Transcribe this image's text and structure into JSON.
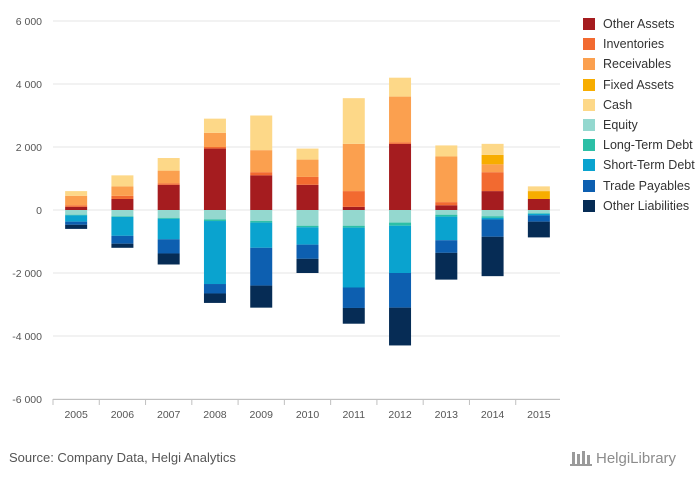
{
  "chart_data": {
    "type": "bar",
    "stacked": true,
    "categories": [
      "2005",
      "2006",
      "2007",
      "2008",
      "2009",
      "2010",
      "2011",
      "2012",
      "2013",
      "2014",
      "2015"
    ],
    "ylim": [
      -6000,
      6000
    ],
    "yticks": [
      6000,
      4000,
      2000,
      0,
      -2000,
      -4000,
      -6000
    ],
    "ytick_labels": [
      "6 000",
      "4 000",
      "2 000",
      "0",
      "-2 000",
      "-4 000",
      "-6 000"
    ],
    "grid": true,
    "legend_position": "right",
    "series": [
      {
        "name": "Other Assets",
        "color": "#a51c1f",
        "values": [
          100,
          350,
          800,
          1950,
          1100,
          800,
          100,
          2100,
          150,
          600,
          350
        ]
      },
      {
        "name": "Inventories",
        "color": "#f26a30",
        "values": [
          50,
          100,
          50,
          50,
          100,
          250,
          500,
          50,
          100,
          600,
          0
        ]
      },
      {
        "name": "Receivables",
        "color": "#fba04f",
        "values": [
          300,
          300,
          400,
          450,
          700,
          550,
          1500,
          1450,
          1450,
          250,
          0
        ]
      },
      {
        "name": "Fixed Assets",
        "color": "#f7ad00",
        "values": [
          0,
          0,
          0,
          0,
          0,
          0,
          0,
          0,
          0,
          300,
          250
        ]
      },
      {
        "name": "Cash",
        "color": "#fdd888",
        "values": [
          150,
          350,
          400,
          450,
          1100,
          350,
          1450,
          600,
          350,
          350,
          150
        ]
      },
      {
        "name": "Equity",
        "color": "#94d8cf",
        "values": [
          -150,
          -200,
          -250,
          -300,
          -350,
          -500,
          -500,
          -400,
          -150,
          -200,
          -100
        ]
      },
      {
        "name": "Long-Term Debt",
        "color": "#2cbfa6",
        "values": [
          -20,
          -20,
          -30,
          -50,
          -50,
          -50,
          -60,
          -100,
          -60,
          -50,
          -20
        ]
      },
      {
        "name": "Short-Term Debt",
        "color": "#0aa3cf",
        "values": [
          -200,
          -600,
          -650,
          -2000,
          -800,
          -550,
          -1900,
          -1500,
          -750,
          -50,
          -50
        ]
      },
      {
        "name": "Trade Payables",
        "color": "#0d5fb0",
        "values": [
          -100,
          -250,
          -450,
          -300,
          -1200,
          -450,
          -650,
          -1100,
          -400,
          -550,
          -200
        ]
      },
      {
        "name": "Other Liabilities",
        "color": "#062c55",
        "values": [
          -130,
          -130,
          -350,
          -300,
          -700,
          -450,
          -500,
          -1200,
          -850,
          -1250,
          -500
        ]
      }
    ]
  },
  "footer": {
    "source": "Source: Company Data, Helgi Analytics",
    "brand": "HelgiLibrary"
  }
}
